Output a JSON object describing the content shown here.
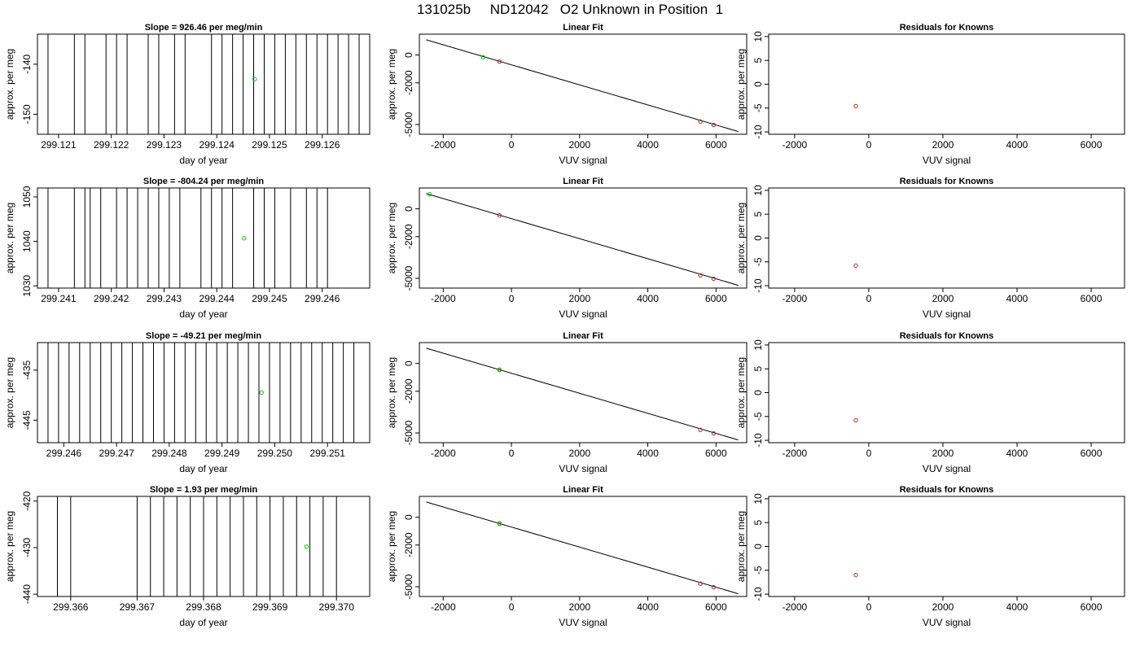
{
  "page": {
    "title": "131025b     ND12042   O2 Unknown in Position  1"
  },
  "colors": {
    "axis": "#000000",
    "trace": "#000000",
    "fit_point": "#00cc00",
    "known_point": "#b03a1e",
    "line": "#000000"
  },
  "chart_data": [
    {
      "type": "line",
      "panel": "time-series",
      "row": 1,
      "title": "Slope =  926.46  per meg/min",
      "xlabel": "day of year",
      "ylabel": "approx. per meg",
      "xlim": [
        299.1206,
        299.1269
      ],
      "ylim": [
        -154,
        -134
      ],
      "x_ticks": [
        299.121,
        299.122,
        299.123,
        299.124,
        299.125,
        299.126
      ],
      "x_tick_labels": [
        "299.121",
        "299.122",
        "299.123",
        "299.124",
        "299.125",
        "299.126"
      ],
      "y_ticks": [
        -140,
        -150
      ],
      "y_tick_labels": [
        "-140",
        "-150"
      ],
      "trace_x": [
        299.1208,
        299.1213,
        299.1215,
        299.1219,
        299.1221,
        299.1223,
        299.1227,
        299.1229,
        299.1232,
        299.1234,
        299.1239,
        299.1241,
        299.1243,
        299.1245,
        299.1247,
        299.1249,
        299.1251,
        299.1253,
        299.1255,
        299.1257,
        299.1259,
        299.1261,
        299.1263,
        299.1265,
        299.1267
      ],
      "point": {
        "x": 299.12472,
        "y": -143
      }
    },
    {
      "type": "scatter",
      "panel": "linear-fit",
      "row": 1,
      "title": "Linear Fit",
      "xlabel": "VUV signal",
      "ylabel": "approx. per meg",
      "xlim": [
        -2700,
        6900
      ],
      "ylim": [
        -5700,
        1500
      ],
      "x_ticks": [
        -2000,
        0,
        2000,
        4000,
        6000
      ],
      "x_tick_labels": [
        "-2000",
        "0",
        "2000",
        "4000",
        "6000"
      ],
      "y_ticks": [
        0,
        -2000,
        -5000
      ],
      "y_tick_labels": [
        "0",
        "-2000",
        "-5000"
      ],
      "fit_line": {
        "x": [
          -2500,
          6650
        ],
        "y": [
          1100,
          -5500
        ]
      },
      "knowns": {
        "x": [
          -350,
          5540,
          5930
        ],
        "y": [
          -470,
          -4780,
          -5030
        ]
      },
      "unknown": {
        "x": [
          -830
        ],
        "y": [
          -150
        ]
      }
    },
    {
      "type": "scatter",
      "panel": "residuals",
      "row": 1,
      "title": "Residuals for Knowns",
      "xlabel": "VUV signal",
      "ylabel": "approx. per meg",
      "xlim": [
        -2700,
        6900
      ],
      "ylim": [
        -10.5,
        10.5
      ],
      "x_ticks": [
        -2000,
        0,
        2000,
        4000,
        6000
      ],
      "x_tick_labels": [
        "-2000",
        "0",
        "2000",
        "4000",
        "6000"
      ],
      "y_ticks": [
        10,
        5,
        0,
        -5,
        -10
      ],
      "y_tick_labels": [
        "10",
        "5",
        "0",
        "-5",
        "-10"
      ],
      "points": {
        "x": [
          -350
        ],
        "y": [
          -4.6
        ]
      }
    },
    {
      "type": "line",
      "panel": "time-series",
      "row": 2,
      "title": "Slope =  -804.24  per meg/min",
      "xlabel": "day of year",
      "ylabel": "approx. per meg",
      "xlim": [
        299.2406,
        299.2469
      ],
      "ylim": [
        1029.5,
        1052
      ],
      "x_ticks": [
        299.241,
        299.242,
        299.243,
        299.244,
        299.245,
        299.246
      ],
      "x_tick_labels": [
        "299.241",
        "299.242",
        "299.243",
        "299.244",
        "299.245",
        "299.246"
      ],
      "y_ticks": [
        1050,
        1040,
        1030
      ],
      "y_tick_labels": [
        "1050",
        "1040",
        "1030"
      ],
      "trace_x": [
        299.2408,
        299.2413,
        299.2415,
        299.2416,
        299.2418,
        299.2421,
        299.2423,
        299.2425,
        299.2427,
        299.2429,
        299.2431,
        299.2433,
        299.2437,
        299.2439,
        299.2441,
        299.2443,
        299.2447,
        299.2449,
        299.2451,
        299.2454,
        299.2457,
        299.2459,
        299.2461
      ],
      "point": {
        "x": 299.24452,
        "y": 1040.7
      }
    },
    {
      "type": "scatter",
      "panel": "linear-fit",
      "row": 2,
      "title": "Linear Fit",
      "xlabel": "VUV signal",
      "ylabel": "approx. per meg",
      "xlim": [
        -2700,
        6900
      ],
      "ylim": [
        -5700,
        1500
      ],
      "x_ticks": [
        -2000,
        0,
        2000,
        4000,
        6000
      ],
      "x_tick_labels": [
        "-2000",
        "0",
        "2000",
        "4000",
        "6000"
      ],
      "y_ticks": [
        0,
        -2000,
        -5000
      ],
      "y_tick_labels": [
        "0",
        "-2000",
        "-5000"
      ],
      "fit_line": {
        "x": [
          -2500,
          6650
        ],
        "y": [
          1100,
          -5500
        ]
      },
      "knowns": {
        "x": [
          -350,
          5540,
          5930
        ],
        "y": [
          -470,
          -4780,
          -5030
        ]
      },
      "unknown": {
        "x": [
          -2400
        ],
        "y": [
          1050
        ]
      }
    },
    {
      "type": "scatter",
      "panel": "residuals",
      "row": 2,
      "title": "Residuals for Knowns",
      "xlabel": "VUV signal",
      "ylabel": "approx. per meg",
      "xlim": [
        -2700,
        6900
      ],
      "ylim": [
        -10.5,
        10.5
      ],
      "x_ticks": [
        -2000,
        0,
        2000,
        4000,
        6000
      ],
      "x_tick_labels": [
        "-2000",
        "0",
        "2000",
        "4000",
        "6000"
      ],
      "y_ticks": [
        10,
        5,
        0,
        -5,
        -10
      ],
      "y_tick_labels": [
        "10",
        "5",
        "0",
        "-5",
        "-10"
      ],
      "points": {
        "x": [
          -350
        ],
        "y": [
          -5.8
        ]
      }
    },
    {
      "type": "line",
      "panel": "time-series",
      "row": 3,
      "title": "Slope =  -49.21  per meg/min",
      "xlabel": "day of year",
      "ylabel": "approx. per meg",
      "xlim": [
        299.2455,
        299.2518
      ],
      "ylim": [
        -449.5,
        -429.5
      ],
      "x_ticks": [
        299.246,
        299.247,
        299.248,
        299.249,
        299.25,
        299.251
      ],
      "x_tick_labels": [
        "299.246",
        "299.247",
        "299.248",
        "299.249",
        "299.250",
        "299.251"
      ],
      "y_ticks": [
        -435,
        -445
      ],
      "y_tick_labels": [
        "-435",
        "-445"
      ],
      "trace_x": [
        299.2457,
        299.2459,
        299.2461,
        299.2463,
        299.2465,
        299.2467,
        299.2469,
        299.2471,
        299.2473,
        299.2475,
        299.2477,
        299.2479,
        299.2481,
        299.2483,
        299.2485,
        299.2487,
        299.2489,
        299.2491,
        299.2493,
        299.2495,
        299.2497,
        299.2499,
        299.2501,
        299.2503,
        299.2505,
        299.2507,
        299.2509,
        299.2511,
        299.2513,
        299.2515
      ],
      "point": {
        "x": 299.24975,
        "y": -439.5
      }
    },
    {
      "type": "scatter",
      "panel": "linear-fit",
      "row": 3,
      "title": "Linear Fit",
      "xlabel": "VUV signal",
      "ylabel": "approx. per meg",
      "xlim": [
        -2700,
        6900
      ],
      "ylim": [
        -5700,
        1500
      ],
      "x_ticks": [
        -2000,
        0,
        2000,
        4000,
        6000
      ],
      "x_tick_labels": [
        "-2000",
        "0",
        "2000",
        "4000",
        "6000"
      ],
      "y_ticks": [
        0,
        -2000,
        -5000
      ],
      "y_tick_labels": [
        "0",
        "-2000",
        "-5000"
      ],
      "fit_line": {
        "x": [
          -2500,
          6650
        ],
        "y": [
          1100,
          -5500
        ]
      },
      "knowns": {
        "x": [
          -350,
          5540,
          5930
        ],
        "y": [
          -470,
          -4780,
          -5030
        ]
      },
      "unknown": {
        "x": [
          -350
        ],
        "y": [
          -440
        ]
      }
    },
    {
      "type": "scatter",
      "panel": "residuals",
      "row": 3,
      "title": "Residuals for Knowns",
      "xlabel": "VUV signal",
      "ylabel": "approx. per meg",
      "xlim": [
        -2700,
        6900
      ],
      "ylim": [
        -10.5,
        10.5
      ],
      "x_ticks": [
        -2000,
        0,
        2000,
        4000,
        6000
      ],
      "x_tick_labels": [
        "-2000",
        "0",
        "2000",
        "4000",
        "6000"
      ],
      "y_ticks": [
        10,
        5,
        0,
        -5,
        -10
      ],
      "y_tick_labels": [
        "10",
        "5",
        "0",
        "-5",
        "-10"
      ],
      "points": {
        "x": [
          -350
        ],
        "y": [
          -5.8
        ]
      }
    },
    {
      "type": "line",
      "panel": "time-series",
      "row": 4,
      "title": "Slope =  1.93  per meg/min",
      "xlabel": "day of year",
      "ylabel": "approx. per meg",
      "xlim": [
        299.3655,
        299.3705
      ],
      "ylim": [
        -440.5,
        -419
      ],
      "x_ticks": [
        299.366,
        299.367,
        299.368,
        299.369,
        299.37
      ],
      "x_tick_labels": [
        "299.366",
        "299.367",
        "299.368",
        "299.369",
        "299.370"
      ],
      "y_ticks": [
        -420,
        -430,
        -440
      ],
      "y_tick_labels": [
        "-420",
        "-430",
        "-440"
      ],
      "trace_x": [
        299.3658,
        299.366,
        299.367,
        299.3672,
        299.3674,
        299.3676,
        299.3678,
        299.368,
        299.3682,
        299.3684,
        299.3686,
        299.3688,
        299.369,
        299.3692,
        299.3694,
        299.3696,
        299.3698,
        299.37
      ],
      "point": {
        "x": 299.36955,
        "y": -429.8
      }
    },
    {
      "type": "scatter",
      "panel": "linear-fit",
      "row": 4,
      "title": "Linear Fit",
      "xlabel": "VUV signal",
      "ylabel": "approx. per meg",
      "xlim": [
        -2700,
        6900
      ],
      "ylim": [
        -5700,
        1500
      ],
      "x_ticks": [
        -2000,
        0,
        2000,
        4000,
        6000
      ],
      "x_tick_labels": [
        "-2000",
        "0",
        "2000",
        "4000",
        "6000"
      ],
      "y_ticks": [
        0,
        -2000,
        -5000
      ],
      "y_tick_labels": [
        "0",
        "-2000",
        "-5000"
      ],
      "fit_line": {
        "x": [
          -2500,
          6650
        ],
        "y": [
          1100,
          -5500
        ]
      },
      "knowns": {
        "x": [
          -350,
          5540,
          5930
        ],
        "y": [
          -470,
          -4780,
          -5030
        ]
      },
      "unknown": {
        "x": [
          -350
        ],
        "y": [
          -440
        ]
      }
    },
    {
      "type": "scatter",
      "panel": "residuals",
      "row": 4,
      "title": "Residuals for Knowns",
      "xlabel": "VUV signal",
      "ylabel": "approx. per meg",
      "xlim": [
        -2700,
        6900
      ],
      "ylim": [
        -10.5,
        10.5
      ],
      "x_ticks": [
        -2000,
        0,
        2000,
        4000,
        6000
      ],
      "x_tick_labels": [
        "-2000",
        "0",
        "2000",
        "4000",
        "6000"
      ],
      "y_ticks": [
        10,
        5,
        0,
        -5,
        -10
      ],
      "y_tick_labels": [
        "10",
        "5",
        "0",
        "-5",
        "-10"
      ],
      "points": {
        "x": [
          -350
        ],
        "y": [
          -6.0
        ]
      }
    }
  ]
}
